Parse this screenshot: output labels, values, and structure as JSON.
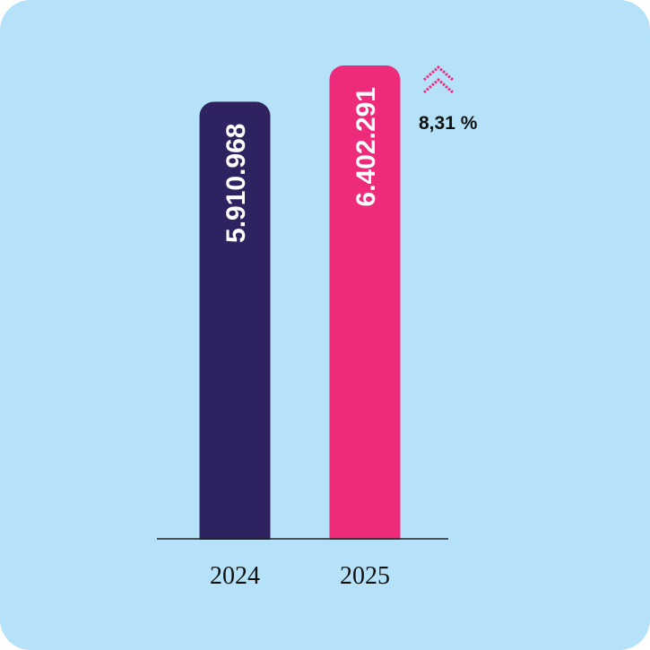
{
  "chart_data": {
    "type": "bar",
    "categories": [
      "2024",
      "2025"
    ],
    "values": [
      5910968,
      6402291
    ],
    "value_labels": [
      "5.910.968",
      "6.402.291"
    ],
    "colors": [
      "#2e2260",
      "#ee2a7b"
    ],
    "change": {
      "label": "8,31 %",
      "direction": "up",
      "icon": "double-chevron-up-icon",
      "color": "#ee2a7b"
    },
    "title": "",
    "xlabel": "",
    "ylabel": "",
    "ylim": [
      0,
      6402291
    ],
    "grid": false,
    "legend": "none"
  },
  "background": "#b5e2f8"
}
